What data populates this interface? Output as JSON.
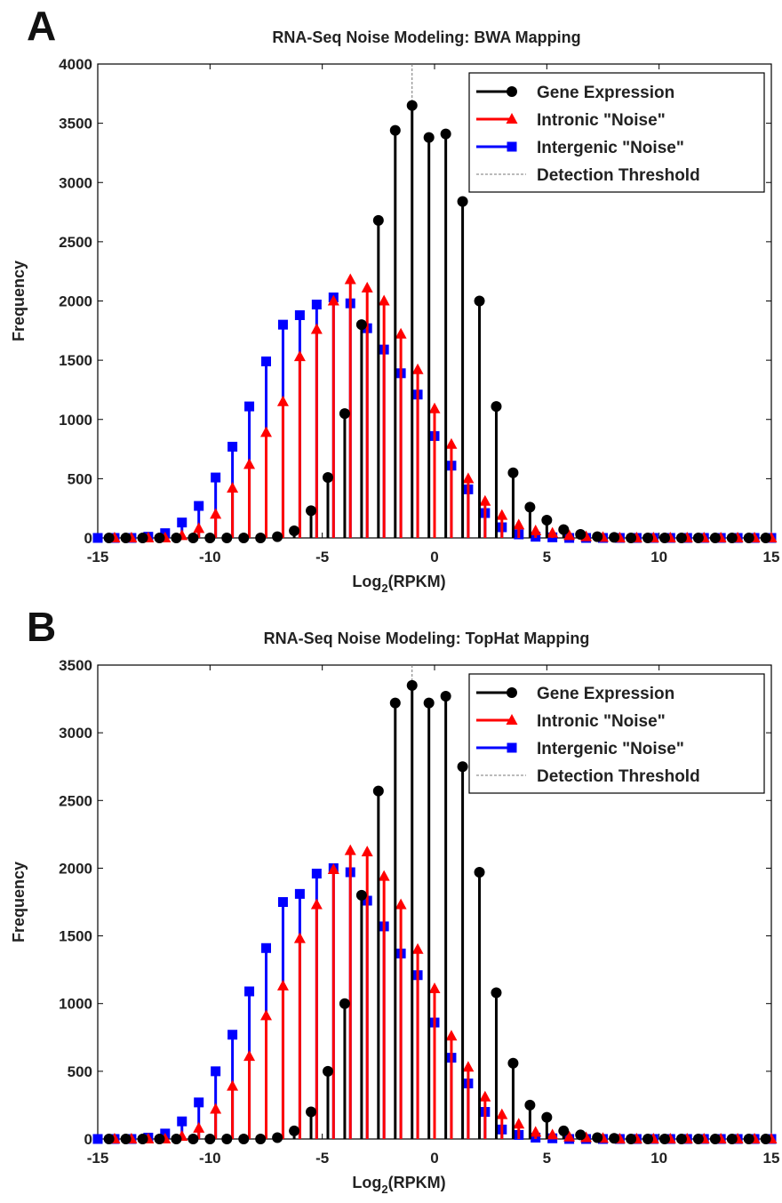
{
  "chart_data": [
    {
      "type": "stem",
      "panel_label": "A",
      "title": "RNA-Seq Noise Modeling: BWA Mapping",
      "xlabel_main": "Log",
      "xlabel_sub": "2",
      "xlabel_rest": "(RPKM)",
      "ylabel": "Frequency",
      "xlim": [
        -15,
        15
      ],
      "ylim": [
        0,
        4000
      ],
      "xticks": [
        "-15",
        "-10",
        "-5",
        "0",
        "5",
        "10",
        "15"
      ],
      "yticks": [
        "0",
        "500",
        "1000",
        "1500",
        "2000",
        "2500",
        "3000",
        "3500",
        "4000"
      ],
      "threshold_x": -1,
      "legend_position": "top-right",
      "series": [
        {
          "name": "Gene Expression",
          "color": "#000000",
          "marker": "circle",
          "x": [
            -14.5,
            -13.75,
            -13,
            -12.25,
            -11.5,
            -10.75,
            -10,
            -9.25,
            -8.5,
            -7.75,
            -7,
            -6.25,
            -5.5,
            -4.75,
            -4,
            -3.25,
            -2.5,
            -1.75,
            -1,
            -0.25,
            0.5,
            1.25,
            2,
            2.75,
            3.5,
            4.25,
            5,
            5.75,
            6.5,
            7.25,
            8,
            8.75,
            9.5,
            10.25,
            11,
            11.75,
            12.5,
            13.25,
            14,
            14.75
          ],
          "values": [
            0,
            0,
            0,
            0,
            0,
            0,
            0,
            0,
            0,
            0,
            10,
            60,
            230,
            510,
            1050,
            1800,
            2680,
            3440,
            3650,
            3380,
            3410,
            2840,
            2000,
            1110,
            550,
            260,
            150,
            70,
            30,
            10,
            5,
            0,
            0,
            0,
            0,
            0,
            0,
            0,
            0,
            0
          ]
        },
        {
          "name": "Intronic \"Noise\"",
          "color": "#ff0000",
          "marker": "triangle",
          "x": [
            -14.25,
            -13.5,
            -12.75,
            -12,
            -11.25,
            -10.5,
            -9.75,
            -9,
            -8.25,
            -7.5,
            -6.75,
            -6,
            -5.25,
            -4.5,
            -3.75,
            -3,
            -2.25,
            -1.5,
            -0.75,
            0,
            0.75,
            1.5,
            2.25,
            3,
            3.75,
            4.5,
            5.25,
            6,
            6.75,
            7.5,
            8.25,
            9,
            9.75,
            10.5,
            11.25,
            12,
            12.75,
            13.5,
            14.25,
            15
          ],
          "values": [
            0,
            0,
            0,
            0,
            20,
            80,
            200,
            420,
            620,
            890,
            1150,
            1530,
            1760,
            2000,
            2180,
            2110,
            2000,
            1720,
            1420,
            1090,
            790,
            500,
            310,
            190,
            110,
            60,
            40,
            20,
            10,
            5,
            0,
            0,
            0,
            0,
            0,
            0,
            0,
            0,
            0,
            0
          ]
        },
        {
          "name": "Intergenic \"Noise\"",
          "color": "#0000ff",
          "marker": "square",
          "x": [
            -15,
            -14.25,
            -13.5,
            -12.75,
            -12,
            -11.25,
            -10.5,
            -9.75,
            -9,
            -8.25,
            -7.5,
            -6.75,
            -6,
            -5.25,
            -4.5,
            -3.75,
            -3,
            -2.25,
            -1.5,
            -0.75,
            0,
            0.75,
            1.5,
            2.25,
            3,
            3.75,
            4.5,
            5.25,
            6,
            6.75,
            7.5,
            8.25,
            9,
            9.75,
            10.5,
            11.25,
            12,
            12.75,
            13.5,
            14.25,
            15
          ],
          "values": [
            0,
            0,
            0,
            10,
            40,
            130,
            270,
            510,
            770,
            1110,
            1490,
            1800,
            1880,
            1970,
            2030,
            1980,
            1770,
            1590,
            1390,
            1210,
            860,
            610,
            410,
            210,
            90,
            30,
            10,
            5,
            0,
            0,
            0,
            0,
            0,
            0,
            0,
            0,
            0,
            0,
            0,
            0,
            0
          ]
        }
      ],
      "threshold_name": "Detection Threshold"
    },
    {
      "type": "stem",
      "panel_label": "B",
      "title": "RNA-Seq Noise Modeling: TopHat Mapping",
      "xlabel_main": "Log",
      "xlabel_sub": "2",
      "xlabel_rest": "(RPKM)",
      "ylabel": "Frequency",
      "xlim": [
        -15,
        15
      ],
      "ylim": [
        0,
        3500
      ],
      "xticks": [
        "-15",
        "-10",
        "-5",
        "0",
        "5",
        "10",
        "15"
      ],
      "yticks": [
        "0",
        "500",
        "1000",
        "1500",
        "2000",
        "2500",
        "3000",
        "3500"
      ],
      "threshold_x": -1,
      "legend_position": "top-right",
      "series": [
        {
          "name": "Gene Expression",
          "color": "#000000",
          "marker": "circle",
          "x": [
            -14.5,
            -13.75,
            -13,
            -12.25,
            -11.5,
            -10.75,
            -10,
            -9.25,
            -8.5,
            -7.75,
            -7,
            -6.25,
            -5.5,
            -4.75,
            -4,
            -3.25,
            -2.5,
            -1.75,
            -1,
            -0.25,
            0.5,
            1.25,
            2,
            2.75,
            3.5,
            4.25,
            5,
            5.75,
            6.5,
            7.25,
            8,
            8.75,
            9.5,
            10.25,
            11,
            11.75,
            12.5,
            13.25,
            14,
            14.75
          ],
          "values": [
            0,
            0,
            0,
            0,
            0,
            0,
            0,
            0,
            0,
            0,
            10,
            60,
            200,
            500,
            1000,
            1800,
            2570,
            3220,
            3350,
            3220,
            3270,
            2750,
            1970,
            1080,
            560,
            250,
            160,
            60,
            30,
            10,
            5,
            0,
            0,
            0,
            0,
            0,
            0,
            0,
            0,
            0
          ]
        },
        {
          "name": "Intronic \"Noise\"",
          "color": "#ff0000",
          "marker": "triangle",
          "x": [
            -14.25,
            -13.5,
            -12.75,
            -12,
            -11.25,
            -10.5,
            -9.75,
            -9,
            -8.25,
            -7.5,
            -6.75,
            -6,
            -5.25,
            -4.5,
            -3.75,
            -3,
            -2.25,
            -1.5,
            -0.75,
            0,
            0.75,
            1.5,
            2.25,
            3,
            3.75,
            4.5,
            5.25,
            6,
            6.75,
            7.5,
            8.25,
            9,
            9.75,
            10.5,
            11.25,
            12,
            12.75,
            13.5,
            14.25,
            15
          ],
          "values": [
            0,
            0,
            0,
            0,
            20,
            80,
            220,
            390,
            610,
            910,
            1130,
            1480,
            1730,
            1990,
            2130,
            2120,
            1940,
            1730,
            1400,
            1110,
            760,
            530,
            310,
            180,
            110,
            50,
            30,
            15,
            10,
            5,
            0,
            0,
            0,
            0,
            0,
            0,
            0,
            0,
            0,
            0
          ]
        },
        {
          "name": "Intergenic \"Noise\"",
          "color": "#0000ff",
          "marker": "square",
          "x": [
            -15,
            -14.25,
            -13.5,
            -12.75,
            -12,
            -11.25,
            -10.5,
            -9.75,
            -9,
            -8.25,
            -7.5,
            -6.75,
            -6,
            -5.25,
            -4.5,
            -3.75,
            -3,
            -2.25,
            -1.5,
            -0.75,
            0,
            0.75,
            1.5,
            2.25,
            3,
            3.75,
            4.5,
            5.25,
            6,
            6.75,
            7.5,
            8.25,
            9,
            9.75,
            10.5,
            11.25,
            12,
            12.75,
            13.5,
            14.25,
            15
          ],
          "values": [
            0,
            0,
            0,
            10,
            40,
            130,
            270,
            500,
            770,
            1090,
            1410,
            1750,
            1810,
            1960,
            2000,
            1970,
            1760,
            1570,
            1370,
            1210,
            860,
            600,
            410,
            200,
            70,
            30,
            10,
            5,
            0,
            0,
            0,
            0,
            0,
            0,
            0,
            0,
            0,
            0,
            0,
            0,
            0
          ]
        }
      ],
      "threshold_name": "Detection Threshold"
    }
  ]
}
